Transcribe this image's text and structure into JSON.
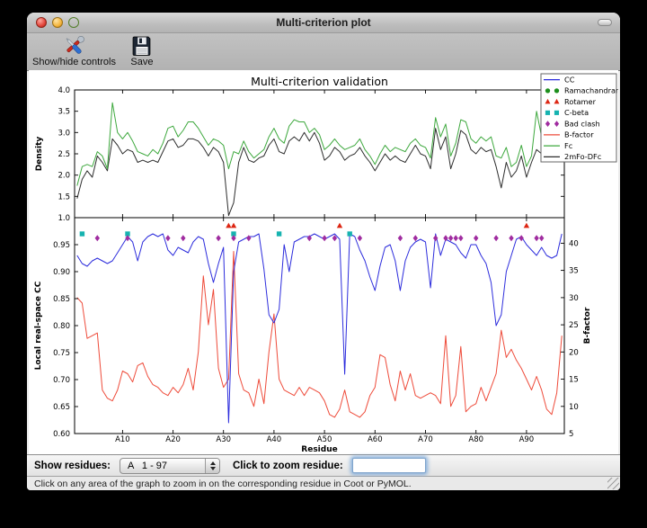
{
  "window": {
    "title": "Multi-criterion plot",
    "toolbar": {
      "controls_label": "Show/hide controls",
      "save_label": "Save"
    }
  },
  "controls": {
    "show_residues_label": "Show residues:",
    "residue_range_value": "A   1 - 97",
    "zoom_label": "Click to zoom residue:",
    "zoom_input_value": ""
  },
  "status_bar": "Click on any area of the graph to zoom in on the corresponding residue in Coot or PyMOL.",
  "chart_data": {
    "type": "line",
    "title": "Multi-criterion validation",
    "x_axis": {
      "label": "Residue",
      "range": [
        1,
        97
      ],
      "ticks": [
        {
          "v": 10,
          "label": "A10"
        },
        {
          "v": 20,
          "label": "A20"
        },
        {
          "v": 30,
          "label": "A30"
        },
        {
          "v": 40,
          "label": "A40"
        },
        {
          "v": 50,
          "label": "A50"
        },
        {
          "v": 60,
          "label": "A60"
        },
        {
          "v": 70,
          "label": "A70"
        },
        {
          "v": 80,
          "label": "A80"
        },
        {
          "v": 90,
          "label": "A90"
        }
      ]
    },
    "top_plot": {
      "ylabel": "Density",
      "ylim": [
        1.0,
        4.0
      ],
      "yticks": [
        {
          "v": 1.0,
          "label": "1.0"
        },
        {
          "v": 1.5,
          "label": "1.5"
        },
        {
          "v": 2.0,
          "label": "2.0"
        },
        {
          "v": 2.5,
          "label": "2.5"
        },
        {
          "v": 3.0,
          "label": "3.0"
        },
        {
          "v": 3.5,
          "label": "3.5"
        },
        {
          "v": 4.0,
          "label": "4.0"
        }
      ],
      "series": [
        {
          "name": "2mFo-DFc",
          "color": "#2d2d2d",
          "values": [
            1.45,
            1.9,
            2.1,
            1.95,
            2.45,
            2.3,
            2.1,
            2.85,
            2.7,
            2.5,
            2.6,
            2.55,
            2.3,
            2.35,
            2.3,
            2.35,
            2.3,
            2.55,
            2.8,
            2.85,
            2.65,
            2.7,
            2.85,
            2.85,
            2.8,
            2.65,
            2.45,
            2.65,
            2.55,
            2.3,
            1.05,
            1.35,
            2.3,
            2.65,
            2.35,
            2.3,
            2.4,
            2.45,
            2.7,
            2.85,
            2.55,
            2.5,
            2.8,
            2.9,
            2.8,
            3.0,
            2.8,
            3.0,
            2.75,
            2.35,
            2.45,
            2.65,
            2.55,
            2.35,
            2.45,
            2.5,
            2.65,
            2.45,
            2.3,
            2.1,
            2.3,
            2.5,
            2.35,
            2.45,
            2.35,
            2.3,
            2.5,
            2.7,
            2.5,
            2.45,
            2.15,
            3.1,
            2.6,
            2.9,
            2.15,
            2.5,
            3.05,
            2.95,
            2.6,
            2.5,
            2.65,
            2.55,
            2.6,
            2.2,
            1.7,
            2.3,
            1.95,
            2.1,
            2.45,
            1.95,
            2.3,
            2.6,
            2.5,
            2.4,
            3.2,
            2.6,
            2.4
          ]
        },
        {
          "name": "Fc",
          "color": "#3da83d",
          "values": [
            1.75,
            2.2,
            2.25,
            2.2,
            2.55,
            2.45,
            2.15,
            3.7,
            3.0,
            2.85,
            3.0,
            2.8,
            2.55,
            2.5,
            2.45,
            2.6,
            2.5,
            2.75,
            3.1,
            3.15,
            2.9,
            3.05,
            3.25,
            3.25,
            3.1,
            2.9,
            2.7,
            2.85,
            2.8,
            2.7,
            2.15,
            2.55,
            2.5,
            2.8,
            2.55,
            2.4,
            2.5,
            2.6,
            2.9,
            3.1,
            2.85,
            2.75,
            3.15,
            3.3,
            3.25,
            3.25,
            3.0,
            3.1,
            2.95,
            2.6,
            2.7,
            2.85,
            2.7,
            2.6,
            2.65,
            2.7,
            2.85,
            2.6,
            2.45,
            2.25,
            2.5,
            2.7,
            2.55,
            2.65,
            2.6,
            2.55,
            2.75,
            2.85,
            2.7,
            2.65,
            2.4,
            3.35,
            2.9,
            3.2,
            2.45,
            2.75,
            3.3,
            3.25,
            2.85,
            2.75,
            2.9,
            2.8,
            2.9,
            2.45,
            2.4,
            2.65,
            2.2,
            2.3,
            2.7,
            2.2,
            2.45,
            3.5,
            2.9,
            2.65,
            3.0,
            2.9,
            2.85
          ]
        }
      ]
    },
    "bottom_plot": {
      "ylabel_left": "Local real-space CC",
      "ylim_left": [
        0.6,
        1.0
      ],
      "yticks_left": [
        {
          "v": 0.6,
          "label": "0.60"
        },
        {
          "v": 0.65,
          "label": "0.65"
        },
        {
          "v": 0.7,
          "label": "0.70"
        },
        {
          "v": 0.75,
          "label": "0.75"
        },
        {
          "v": 0.8,
          "label": "0.80"
        },
        {
          "v": 0.85,
          "label": "0.85"
        },
        {
          "v": 0.9,
          "label": "0.90"
        },
        {
          "v": 0.95,
          "label": "0.95"
        }
      ],
      "ylabel_right": "B-factor",
      "ylim_right": [
        5,
        44.7
      ],
      "yticks_right": [
        {
          "v": 5,
          "label": "5"
        },
        {
          "v": 10,
          "label": "10"
        },
        {
          "v": 15,
          "label": "15"
        },
        {
          "v": 20,
          "label": "20"
        },
        {
          "v": 25,
          "label": "25"
        },
        {
          "v": 30,
          "label": "30"
        },
        {
          "v": 35,
          "label": "35"
        },
        {
          "v": 40,
          "label": "40"
        }
      ],
      "series_left": [
        {
          "name": "CC",
          "color": "#2c2cdc",
          "values": [
            0.93,
            0.915,
            0.91,
            0.92,
            0.925,
            0.92,
            0.915,
            0.92,
            0.935,
            0.95,
            0.965,
            0.955,
            0.92,
            0.955,
            0.965,
            0.97,
            0.965,
            0.97,
            0.94,
            0.93,
            0.945,
            0.94,
            0.935,
            0.955,
            0.965,
            0.96,
            0.915,
            0.88,
            0.915,
            0.945,
            0.62,
            0.9,
            0.955,
            0.96,
            0.965,
            0.965,
            0.97,
            0.905,
            0.82,
            0.805,
            0.83,
            0.95,
            0.9,
            0.955,
            0.96,
            0.965,
            0.965,
            0.97,
            0.965,
            0.96,
            0.965,
            0.97,
            0.96,
            0.71,
            0.97,
            0.965,
            0.94,
            0.92,
            0.89,
            0.865,
            0.91,
            0.945,
            0.95,
            0.92,
            0.865,
            0.92,
            0.945,
            0.955,
            0.96,
            0.955,
            0.87,
            0.97,
            0.93,
            0.96,
            0.955,
            0.95,
            0.935,
            0.925,
            0.95,
            0.95,
            0.93,
            0.915,
            0.88,
            0.8,
            0.82,
            0.9,
            0.93,
            0.96,
            0.965,
            0.95,
            0.94,
            0.93,
            0.945,
            0.93,
            0.925,
            0.93,
            0.97
          ]
        }
      ],
      "series_right": [
        {
          "name": "B-factor",
          "color": "#ee4b3a",
          "values": [
            30,
            29,
            22.5,
            23,
            23.5,
            13,
            11.5,
            11,
            13,
            16.5,
            16,
            14.5,
            17.5,
            18,
            15.5,
            14,
            13.5,
            12.5,
            12,
            13.5,
            12.5,
            14,
            17,
            13,
            20,
            34,
            25,
            31.5,
            17,
            13.5,
            15,
            38.5,
            16,
            13,
            12.5,
            10,
            15,
            10.5,
            20,
            27,
            15,
            13,
            12.5,
            12,
            13.5,
            12,
            13.5,
            13,
            12.5,
            11,
            8.5,
            8,
            9.5,
            13,
            9,
            8.5,
            8,
            9,
            12,
            13.5,
            19.5,
            19,
            14,
            11,
            16.5,
            13,
            16,
            12,
            11.5,
            12,
            12.5,
            12,
            10.5,
            23,
            10,
            12,
            21,
            9,
            10,
            10.5,
            13.5,
            11,
            13.5,
            16,
            24,
            19,
            20.5,
            18.5,
            17,
            15,
            13,
            15.5,
            13,
            9.5,
            8.5,
            12.5,
            23
          ]
        }
      ],
      "outlier_markers": [
        {
          "name": "Ramachandran",
          "shape": "circle",
          "color": "#1d8f1d",
          "cc_y": 0.978,
          "residues": []
        },
        {
          "name": "Rotamer",
          "shape": "triangle",
          "color": "#dd2613",
          "cc_y": 0.985,
          "residues": [
            31,
            32,
            53,
            90
          ]
        },
        {
          "name": "C-beta",
          "shape": "square",
          "color": "#16b3b0",
          "cc_y": 0.97,
          "residues": [
            2,
            11,
            32,
            41,
            55
          ]
        },
        {
          "name": "Bad clash",
          "shape": "diamond",
          "color": "#a02ca0",
          "cc_y": 0.962,
          "residues": [
            5,
            11,
            19,
            22,
            29,
            32,
            35,
            47,
            50,
            52,
            57,
            65,
            68,
            72,
            74,
            75,
            76,
            77,
            80,
            84,
            87,
            89,
            92,
            93
          ]
        }
      ]
    },
    "legend": {
      "position": "upper right",
      "entries": [
        {
          "label": "CC",
          "type": "line",
          "color": "#2c2cdc"
        },
        {
          "label": "Ramachandran",
          "type": "markers",
          "shape": "circle",
          "color": "#1d8f1d"
        },
        {
          "label": "Rotamer",
          "type": "markers",
          "shape": "triangle",
          "color": "#dd2613"
        },
        {
          "label": "C-beta",
          "type": "markers",
          "shape": "square",
          "color": "#16b3b0"
        },
        {
          "label": "Bad clash",
          "type": "markers",
          "shape": "diamond",
          "color": "#a02ca0"
        },
        {
          "label": "B-factor",
          "type": "line",
          "color": "#ee4b3a"
        },
        {
          "label": "Fc",
          "type": "line",
          "color": "#3da83d"
        },
        {
          "label": "2mFo-DFc",
          "type": "line",
          "color": "#2d2d2d"
        }
      ]
    }
  }
}
